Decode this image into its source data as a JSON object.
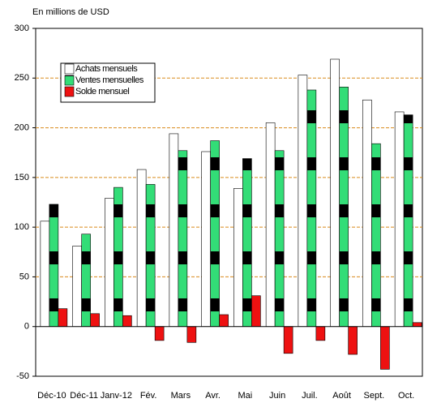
{
  "chart_data": {
    "type": "bar",
    "subtitle": "En millions de USD",
    "categories": [
      "Déc-10",
      "Déc-11",
      "Janv-12",
      "Fév.",
      "Mars",
      "Avr.",
      "Mai",
      "Juin",
      "Juil.",
      "Août",
      "Sept.",
      "Oct."
    ],
    "series": [
      {
        "name": "Achats mensuels",
        "color": "#ffffff",
        "values": [
          106,
          81,
          129,
          158,
          194,
          176,
          139,
          205,
          253,
          269,
          228,
          216
        ]
      },
      {
        "name": "Ventes mensuelles",
        "color": "#33dd77",
        "values": [
          123,
          93,
          140,
          143,
          177,
          187,
          169,
          177,
          238,
          241,
          184,
          213
        ]
      },
      {
        "name": "Solde mensuel",
        "color": "#ee1111",
        "values": [
          18,
          13,
          11,
          -14,
          -16,
          12,
          31,
          -27,
          -14,
          -28,
          -43,
          4
        ]
      }
    ],
    "ylim": [
      -50,
      300
    ],
    "yticks": [
      -50,
      0,
      50,
      100,
      150,
      200,
      250,
      300
    ],
    "grid": true,
    "grid_color": "#d98a1a"
  }
}
